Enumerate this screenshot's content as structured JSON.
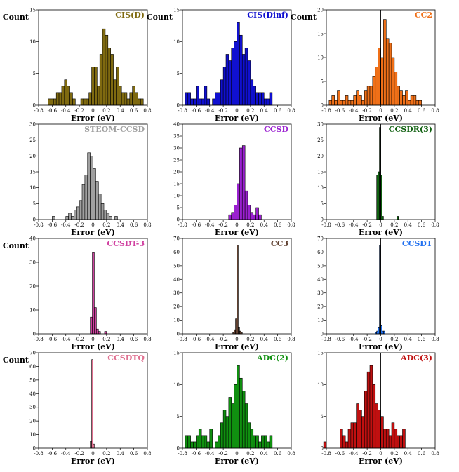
{
  "chart_data": [
    {
      "type": "bar",
      "title": "CIS(D)",
      "color": "#7f6a10",
      "xlabel": "Error (eV)",
      "ylabel": "Count",
      "xlim": [
        -0.8,
        0.8
      ],
      "ylim": [
        0,
        15
      ],
      "yticks": [
        0,
        5,
        10,
        15
      ],
      "xticks": [
        -0.8,
        -0.6,
        -0.4,
        -0.2,
        0.0,
        0.2,
        0.4,
        0.6,
        0.8
      ],
      "bin_start": -0.7,
      "bin_width": 0.04,
      "values": [
        0,
        1,
        1,
        1,
        2,
        2,
        3,
        4,
        3,
        2,
        1,
        0,
        0,
        1,
        1,
        1,
        2,
        6,
        6,
        3,
        8,
        12,
        11,
        9,
        8,
        4,
        6,
        3,
        2,
        2,
        1,
        2,
        3,
        2,
        1,
        1
      ]
    },
    {
      "type": "bar",
      "title": "CIS(Dinf)",
      "color": "#1010d0",
      "xlabel": "Error (eV)",
      "ylabel": "Count",
      "xlim": [
        -0.8,
        0.8
      ],
      "ylim": [
        0,
        15
      ],
      "yticks": [
        0,
        5,
        10,
        15
      ],
      "xticks": [
        -0.8,
        -0.6,
        -0.4,
        -0.2,
        0.0,
        0.2,
        0.4,
        0.6,
        0.8
      ],
      "bin_start": -0.76,
      "bin_width": 0.04,
      "values": [
        2,
        2,
        1,
        1,
        3,
        1,
        1,
        3,
        1,
        0,
        1,
        2,
        2,
        4,
        6,
        8,
        7,
        9,
        10,
        13,
        11,
        8,
        9,
        7,
        4,
        3,
        2,
        2,
        2,
        1,
        1,
        2
      ]
    },
    {
      "type": "bar",
      "title": "CC2",
      "color": "#f07018",
      "xlabel": "Error (eV)",
      "ylabel": "Count",
      "xlim": [
        -0.8,
        0.8
      ],
      "ylim": [
        0,
        20
      ],
      "yticks": [
        0,
        5,
        10,
        15,
        20
      ],
      "xticks": [
        -0.8,
        -0.6,
        -0.4,
        -0.2,
        0.0,
        0.2,
        0.4,
        0.6,
        0.8
      ],
      "bin_start": -0.76,
      "bin_width": 0.04,
      "values": [
        1,
        2,
        1,
        3,
        1,
        1,
        2,
        1,
        1,
        2,
        3,
        2,
        1,
        3,
        4,
        4,
        6,
        8,
        12,
        10,
        18,
        14,
        13,
        10,
        7,
        4,
        3,
        2,
        3,
        1,
        2,
        2,
        1,
        1
      ]
    },
    {
      "type": "bar",
      "title": "STEOM-CCSD",
      "color": "#a0a0a0",
      "xlabel": "Error (eV)",
      "ylabel": "",
      "xlim": [
        -0.8,
        0.8
      ],
      "ylim": [
        0,
        30
      ],
      "yticks": [
        0,
        5,
        10,
        15,
        20,
        25,
        30
      ],
      "xticks": [
        -0.8,
        -0.6,
        -0.4,
        -0.2,
        0.0,
        0.2,
        0.4,
        0.6,
        0.8
      ],
      "bin_start": -0.6,
      "bin_width": 0.04,
      "values": [
        1,
        0,
        0,
        0,
        0,
        1,
        2,
        1,
        3,
        4,
        6,
        11,
        14,
        21,
        20,
        16,
        12,
        8,
        5,
        3,
        2,
        1,
        0,
        1
      ]
    },
    {
      "type": "bar",
      "title": "CCSD",
      "color": "#9a20d0",
      "xlabel": "Error (eV)",
      "ylabel": "",
      "xlim": [
        -0.8,
        0.8
      ],
      "ylim": [
        0,
        40
      ],
      "yticks": [
        0,
        5,
        10,
        15,
        20,
        25,
        30,
        35,
        40
      ],
      "xticks": [
        -0.8,
        -0.6,
        -0.4,
        -0.2,
        0.0,
        0.2,
        0.4,
        0.6,
        0.8
      ],
      "bin_start": -0.12,
      "bin_width": 0.04,
      "values": [
        2,
        3,
        6,
        15,
        30,
        31,
        12,
        6,
        3,
        2,
        5,
        2
      ]
    },
    {
      "type": "bar",
      "title": "CCSDR(3)",
      "color": "#106010",
      "xlabel": "Error (eV)",
      "ylabel": "",
      "xlim": [
        -0.8,
        0.8
      ],
      "ylim": [
        0,
        30
      ],
      "yticks": [
        0,
        5,
        10,
        15,
        20,
        25,
        30
      ],
      "xticks": [
        -0.8,
        -0.6,
        -0.4,
        -0.2,
        0.0,
        0.2,
        0.4,
        0.6,
        0.8
      ],
      "bin_start": -0.06,
      "bin_width": 0.02,
      "values": [
        14,
        15,
        29,
        14,
        1,
        0,
        0,
        0,
        0,
        0,
        0,
        0,
        0,
        0,
        0,
        1
      ]
    },
    {
      "type": "bar",
      "title": "CCSDT-3",
      "color": "#d040a0",
      "xlabel": "Error (eV)",
      "ylabel": "Count",
      "xlim": [
        -0.8,
        0.8
      ],
      "ylim": [
        0,
        40
      ],
      "yticks": [
        0,
        10,
        20,
        30,
        40
      ],
      "xticks": [
        -0.8,
        -0.6,
        -0.4,
        -0.2,
        0.0,
        0.2,
        0.4,
        0.6,
        0.8
      ],
      "bin_start": -0.04,
      "bin_width": 0.03,
      "values": [
        7,
        34,
        11,
        2,
        1,
        0,
        0,
        1
      ]
    },
    {
      "type": "bar",
      "title": "CC3",
      "color": "#604030",
      "xlabel": "Error (eV)",
      "ylabel": "",
      "xlim": [
        -0.8,
        0.8
      ],
      "ylim": [
        0,
        70
      ],
      "yticks": [
        0,
        10,
        20,
        30,
        40,
        50,
        60,
        70
      ],
      "xticks": [
        -0.8,
        -0.6,
        -0.4,
        -0.2,
        0.0,
        0.2,
        0.4,
        0.6,
        0.8
      ],
      "bin_start": -0.06,
      "bin_width": 0.02,
      "values": [
        1,
        3,
        11,
        65,
        5,
        2,
        1
      ]
    },
    {
      "type": "bar",
      "title": "CCSDT",
      "color": "#2070f0",
      "xlabel": "Error (eV)",
      "ylabel": "",
      "xlim": [
        -0.8,
        0.8
      ],
      "ylim": [
        0,
        70
      ],
      "yticks": [
        0,
        10,
        20,
        30,
        40,
        50,
        60,
        70
      ],
      "xticks": [
        -0.8,
        -0.6,
        -0.4,
        -0.2,
        0.0,
        0.2,
        0.4,
        0.6,
        0.8
      ],
      "bin_start": -0.08,
      "bin_width": 0.02,
      "values": [
        1,
        2,
        5,
        65,
        6,
        2,
        2
      ]
    },
    {
      "type": "bar",
      "title": "CCSDTQ",
      "color": "#e07090",
      "xlabel": "Error (eV)",
      "ylabel": "Count",
      "xlim": [
        -0.8,
        0.8
      ],
      "ylim": [
        0,
        70
      ],
      "yticks": [
        0,
        10,
        20,
        30,
        40,
        50,
        60,
        70
      ],
      "xticks": [
        -0.8,
        -0.6,
        -0.4,
        -0.2,
        0.0,
        0.2,
        0.4,
        0.6,
        0.8
      ],
      "bin_start": -0.04,
      "bin_width": 0.02,
      "values": [
        5,
        65,
        3
      ]
    },
    {
      "type": "bar",
      "title": "ADC(2)",
      "color": "#109010",
      "xlabel": "Error (eV)",
      "ylabel": "",
      "xlim": [
        -0.8,
        0.8
      ],
      "ylim": [
        0,
        15
      ],
      "yticks": [
        0,
        5,
        10,
        15
      ],
      "xticks": [
        -0.8,
        -0.6,
        -0.4,
        -0.2,
        0.0,
        0.2,
        0.4,
        0.6,
        0.8
      ],
      "bin_start": -0.76,
      "bin_width": 0.04,
      "values": [
        2,
        2,
        1,
        1,
        2,
        3,
        2,
        2,
        1,
        3,
        0,
        1,
        2,
        4,
        6,
        5,
        8,
        7,
        10,
        13,
        11,
        9,
        7,
        4,
        3,
        2,
        2,
        1,
        2,
        2,
        1,
        2
      ]
    },
    {
      "type": "bar",
      "title": "ADC(3)",
      "color": "#c01010",
      "xlabel": "Error (eV)",
      "ylabel": "",
      "xlim": [
        -0.8,
        0.8
      ],
      "ylim": [
        0,
        15
      ],
      "yticks": [
        0,
        5,
        10,
        15
      ],
      "xticks": [
        -0.8,
        -0.6,
        -0.4,
        -0.2,
        0.0,
        0.2,
        0.4,
        0.6,
        0.8
      ],
      "bin_start": -0.84,
      "bin_width": 0.04,
      "values": [
        1,
        0,
        0,
        0,
        0,
        0,
        3,
        2,
        1,
        3,
        4,
        4,
        7,
        6,
        5,
        9,
        12,
        13,
        10,
        7,
        6,
        5,
        3,
        3,
        2,
        4,
        3,
        2,
        2,
        3
      ]
    }
  ]
}
